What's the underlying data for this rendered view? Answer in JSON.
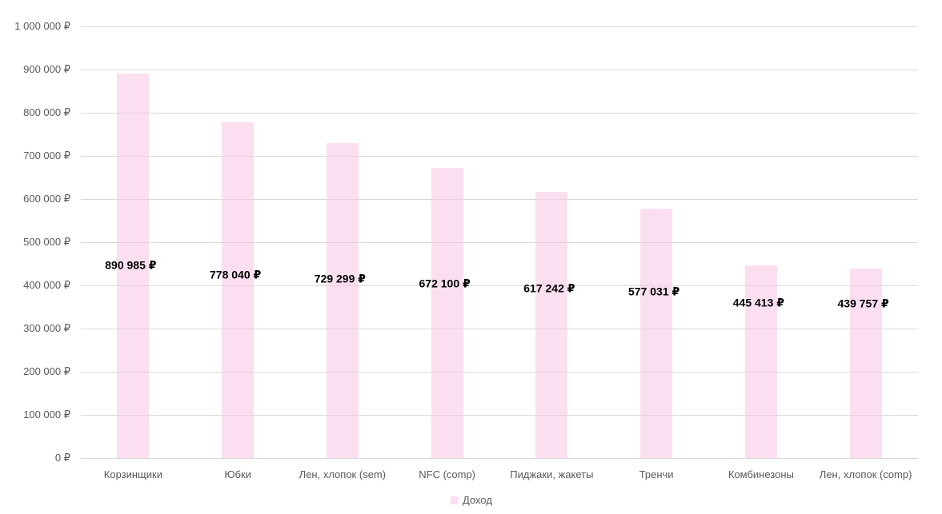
{
  "chart_data": {
    "type": "bar",
    "title": "",
    "categories": [
      "Корзинщики",
      "Юбки",
      "Лен, хлопок (sem)",
      "NFC (comp)",
      "Пиджаки, жакеты",
      "Тренчи",
      "Комбинезоны",
      "Лен, хлопок (comp)"
    ],
    "values": [
      890985,
      778040,
      729299,
      672100,
      617242,
      577031,
      445413,
      439757
    ],
    "value_labels": [
      "890 985 ₽",
      "778 040 ₽",
      "729 299 ₽",
      "672 100 ₽",
      "617 242 ₽",
      "577 031 ₽",
      "445 413 ₽",
      "439 757 ₽"
    ],
    "series": [
      {
        "name": "Доход",
        "values": [
          890985,
          778040,
          729299,
          672100,
          617242,
          577031,
          445413,
          439757
        ]
      }
    ],
    "xlabel": "",
    "ylabel": "",
    "y_axis": {
      "min": 0,
      "max": 1000000,
      "step": 100000,
      "tick_labels": [
        "0 ₽",
        "100 000 ₽",
        "200 000 ₽",
        "300 000 ₽",
        "400 000 ₽",
        "500 000 ₽",
        "600 000 ₽",
        "700 000 ₽",
        "800 000 ₽",
        "900 000 ₽",
        "1 000 000 ₽"
      ]
    },
    "legend": {
      "label": "Доход",
      "position": "bottom-center"
    },
    "grid": true,
    "colors": {
      "bar_fill": "rgba(247,197,230,0.55)",
      "legend_swatch": "#fbdff0",
      "gridline": "#d9d9d9",
      "axis_text": "#595959",
      "value_label_text": "#000000",
      "background": "#ffffff"
    }
  }
}
